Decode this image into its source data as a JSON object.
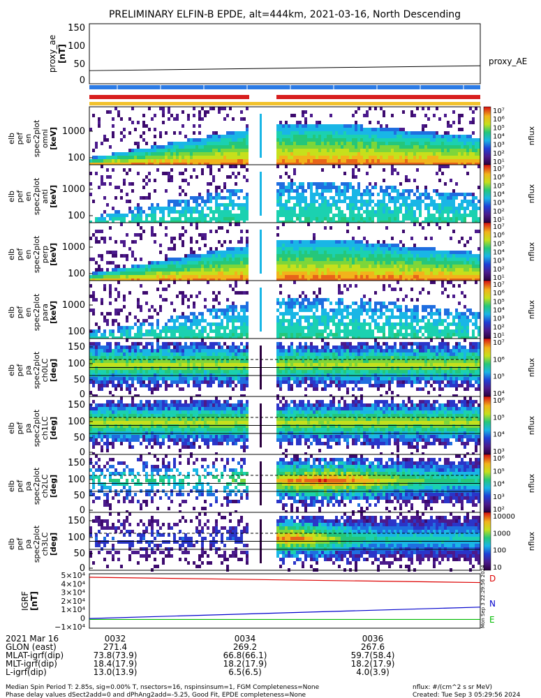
{
  "title": "PRELIMINARY ELFIN-B EPDE, alt=444km, 2021-03-16, North Descending",
  "proxy_ae": {
    "ylabel": [
      "proxy_ae",
      "[nT]"
    ],
    "legend": "proxy_AE",
    "ticks": [
      "150",
      "100",
      "50",
      "0"
    ],
    "line": [
      35,
      48
    ]
  },
  "panels": [
    {
      "id": "omni",
      "type": "energy",
      "ylabel": [
        "elb",
        "pef",
        "en",
        "spec2plot",
        "omni",
        "[keV]"
      ],
      "ticks": [
        "1000",
        "100"
      ],
      "cb_ticks": [
        "10⁷",
        "10⁶",
        "10⁵",
        "10⁴",
        "10³",
        "10²",
        "10¹"
      ],
      "cb_label": "nflux",
      "ridge": "omni"
    },
    {
      "id": "anti",
      "type": "energy",
      "ylabel": [
        "elb",
        "pef",
        "en",
        "spec2plot",
        "anti",
        "[keV]"
      ],
      "ticks": [
        "1000",
        "100"
      ],
      "cb_ticks": [
        "10⁷",
        "10⁶",
        "10⁵",
        "10⁴",
        "10³",
        "10²",
        "10¹"
      ],
      "cb_label": "nflux",
      "ridge": "sparse"
    },
    {
      "id": "perp",
      "type": "energy",
      "ylabel": [
        "elb",
        "pef",
        "en",
        "spec2plot",
        "perp",
        "[keV]"
      ],
      "ticks": [
        "1000",
        "100"
      ],
      "cb_ticks": [
        "10⁷",
        "10⁶",
        "10⁵",
        "10⁴",
        "10³",
        "10²",
        "10¹"
      ],
      "cb_label": "nflux",
      "ridge": "omni"
    },
    {
      "id": "para",
      "type": "energy",
      "ylabel": [
        "elb",
        "pef",
        "en",
        "spec2plot",
        "para",
        "[keV]"
      ],
      "ticks": [
        "1000",
        "100"
      ],
      "cb_ticks": [
        "10⁷",
        "10⁶",
        "10⁵",
        "10⁴",
        "10³",
        "10²",
        "10¹"
      ],
      "cb_label": "nflux",
      "ridge": "sparse"
    },
    {
      "id": "ch0LC",
      "type": "pitch",
      "ylabel": [
        "elb",
        "pef",
        "pa",
        "spec2plot",
        "ch0LC",
        "[deg]"
      ],
      "ticks": [
        "150",
        "100",
        "50",
        "0"
      ],
      "cb_ticks": [
        "10⁷",
        "10⁶",
        "10⁵",
        "10⁴"
      ],
      "cb_label": "nflux"
    },
    {
      "id": "ch1LC",
      "type": "pitch",
      "ylabel": [
        "elb",
        "pef",
        "pa",
        "spec2plot",
        "ch1LC",
        "[deg]"
      ],
      "ticks": [
        "150",
        "100",
        "50",
        "0"
      ],
      "cb_ticks": [
        "10⁶",
        "10⁵",
        "10⁴",
        "10³"
      ],
      "cb_label": "nflux"
    },
    {
      "id": "ch2LC",
      "type": "pitch",
      "ylabel": [
        "elb",
        "pef",
        "pa",
        "spec2plot",
        "ch2LC",
        "[deg]"
      ],
      "ticks": [
        "150",
        "100",
        "50",
        "0"
      ],
      "cb_ticks": [
        "10⁶",
        "10⁵",
        "10⁴",
        "10³",
        "10²"
      ],
      "cb_label": "nflux"
    },
    {
      "id": "ch3LC",
      "type": "pitch",
      "ylabel": [
        "elb",
        "pef",
        "pa",
        "spec2plot",
        "ch3LC",
        "[deg]"
      ],
      "ticks": [
        "150",
        "100",
        "50",
        "0"
      ],
      "cb_ticks": [
        "10000",
        "1000",
        "100",
        "10"
      ],
      "cb_label": "nflux"
    }
  ],
  "igrf": {
    "ylabel": [
      "IGRF",
      "[nT]"
    ],
    "ticks": [
      "5×10⁴",
      "4×10⁴",
      "3×10⁴",
      "2×10⁴",
      "1×10⁴",
      "0",
      "−1×10⁴"
    ],
    "legend": [
      {
        "label": "D",
        "color": "#dd0000"
      },
      {
        "label": "N",
        "color": "#0000cc"
      },
      {
        "label": "E",
        "color": "#00bb00"
      }
    ]
  },
  "side_stamp": "Mon Sep  3 22:29:56 2024",
  "chart_data": {
    "type": "heatmap",
    "title": "PRELIMINARY ELFIN-B EPDE, alt=444km, 2021-03-16, North Descending",
    "x_ticks": [
      "0032",
      "0034",
      "0036"
    ],
    "series": [
      {
        "name": "proxy_AE",
        "type": "line",
        "y": [
          35,
          48
        ],
        "ylim": [
          0,
          160
        ],
        "ylabel": "proxy_ae [nT]"
      },
      {
        "name": "IGRF D",
        "type": "line",
        "y": [
          48000,
          42000
        ],
        "ylim": [
          -10000,
          52000
        ]
      },
      {
        "name": "IGRF N",
        "type": "line",
        "y": [
          1000,
          14000
        ],
        "ylim": [
          -10000,
          52000
        ]
      },
      {
        "name": "IGRF E",
        "type": "line",
        "y": [
          0,
          0
        ],
        "ylim": [
          -10000,
          52000
        ]
      }
    ],
    "energy_range_keV": [
      60,
      7000
    ],
    "pitch_range_deg": [
      0,
      180
    ],
    "pitch_ref_lines_deg": [
      [
        65,
        90,
        115
      ],
      [
        65,
        90,
        115
      ],
      [
        65,
        90,
        115
      ],
      [
        65,
        90,
        115
      ]
    ]
  },
  "footer": {
    "rows": [
      {
        "label": "2021 Mar 16",
        "values": [
          "0032",
          "0034",
          "0036"
        ]
      },
      {
        "label": "GLON (east)",
        "values": [
          "271.4",
          "269.2",
          "267.6"
        ]
      },
      {
        "label": "MLAT-igrf(dip)",
        "values": [
          "73.8(73.9)",
          "66.8(66.1)",
          "59.7(58.4)"
        ]
      },
      {
        "label": "MLT-igrf(dip)",
        "values": [
          "18.4(17.9)",
          "18.2(17.9)",
          "18.2(17.9)"
        ]
      },
      {
        "label": "L-igrf(dip)",
        "values": [
          "13.0(13.9)",
          "6.5(6.5)",
          "4.0(3.9)"
        ]
      }
    ],
    "note1": "Median Spin Period T: 2.85s, sig=0.00% T, nsectors=16, nspinsinsum=1, FGM Completeness=None",
    "note2": "Phase delay values dSect2add=0 and dPhAng2add=-5.25, Good Fit, EPDE completeness=None",
    "units": "nflux: #/(cm^2 s sr MeV)",
    "created": "Created: Tue Sep  3 05:29:56 2024"
  }
}
